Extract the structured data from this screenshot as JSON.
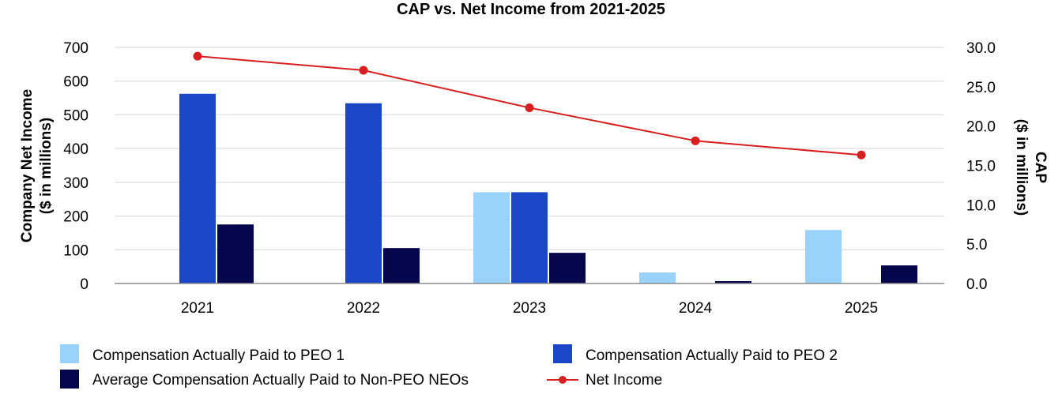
{
  "chart_data": {
    "type": "bar",
    "title": "CAP vs. Net Income from 2021-2025",
    "categories": [
      "2021",
      "2022",
      "2023",
      "2024",
      "2025"
    ],
    "left_axis": {
      "label_line1": "Company Net Income",
      "label_line2": "($ in millions)",
      "ylim": [
        0,
        700
      ],
      "ticks": [
        "0",
        "100",
        "200",
        "300",
        "400",
        "500",
        "600",
        "700"
      ]
    },
    "right_axis": {
      "label_line1": "CAP",
      "label_line2": "($ in millions)",
      "ylim": [
        0,
        30
      ],
      "ticks": [
        "0.0",
        "5.0",
        "10.0",
        "15.0",
        "20.0",
        "25.0",
        "30.0"
      ]
    },
    "series": [
      {
        "name": "Compensation Actually Paid to PEO 1",
        "kind": "bar",
        "axis": "right",
        "color": "#99d3fb",
        "values": [
          0,
          0,
          11.6,
          1.4,
          6.8
        ]
      },
      {
        "name": "Compensation Actually Paid to PEO 2",
        "kind": "bar",
        "axis": "right",
        "color": "#1b46c6",
        "values": [
          24.1,
          22.9,
          11.6,
          0,
          0
        ]
      },
      {
        "name": "Average Compensation Actually Paid to Non-PEO NEOs",
        "kind": "bar",
        "axis": "right",
        "color": "#05064b",
        "values": [
          7.5,
          4.5,
          3.9,
          0.3,
          2.3
        ]
      },
      {
        "name": "Net Income",
        "kind": "line",
        "axis": "left",
        "color": "#d81e1e",
        "values": [
          674,
          632,
          521,
          423,
          381
        ]
      }
    ],
    "grid": true,
    "legend_position": "bottom"
  }
}
